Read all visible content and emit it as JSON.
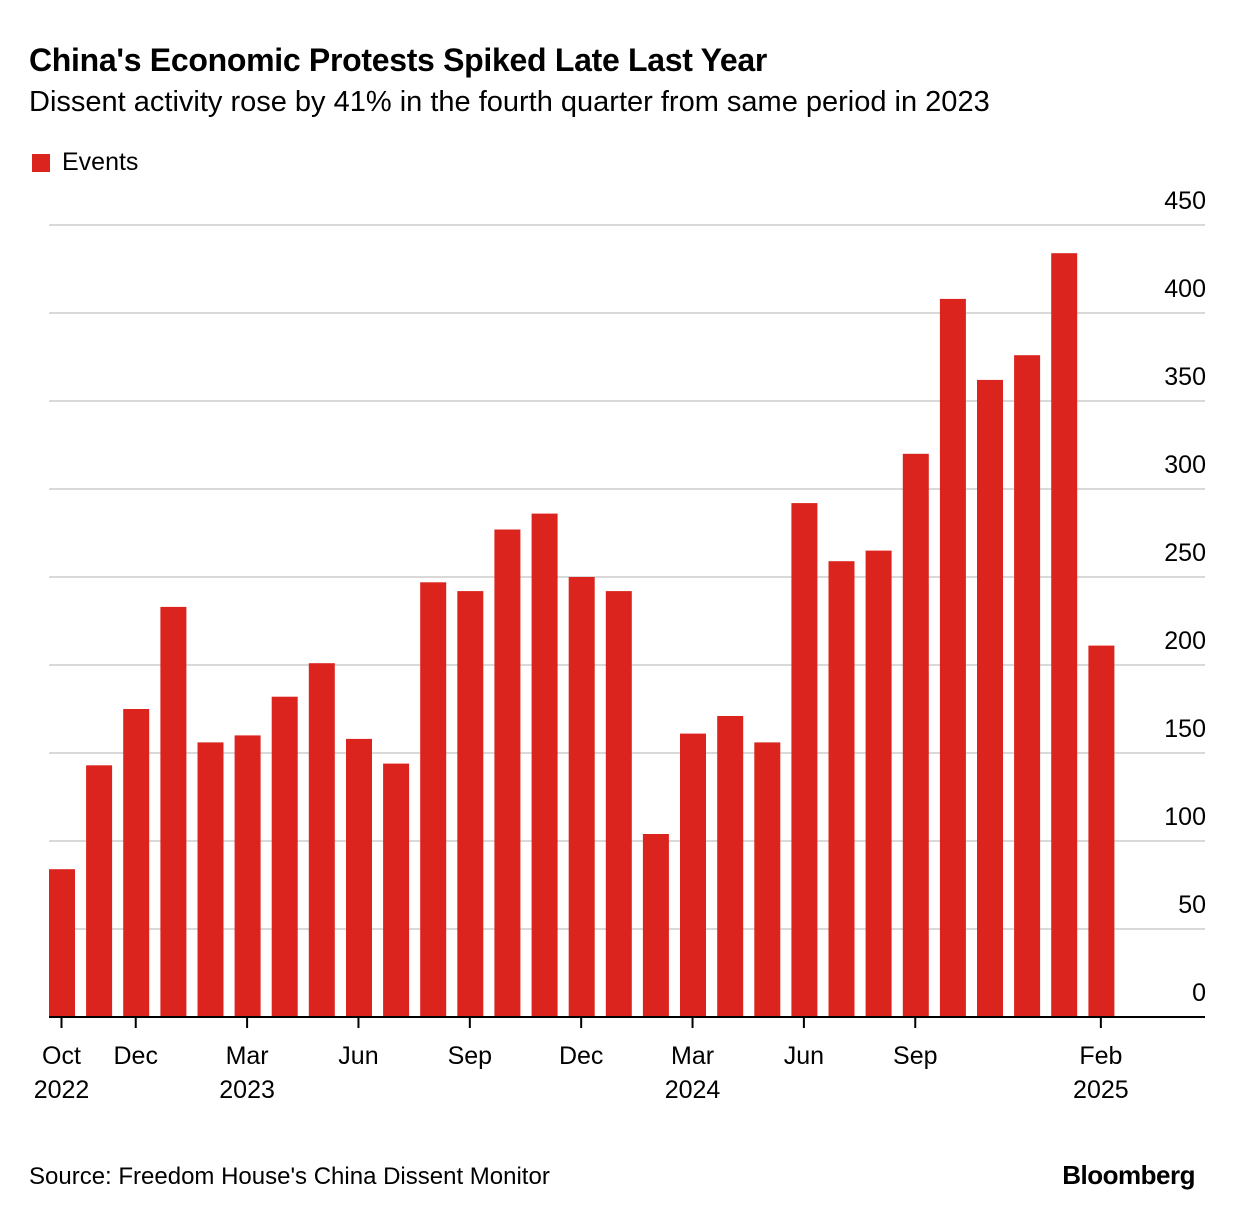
{
  "header": {
    "title": "China's Economic Protests Spiked Late Last Year",
    "subtitle": "Dissent activity rose by 41% in the fourth quarter from same period in 2023"
  },
  "legend": {
    "items": [
      {
        "label": "Events",
        "color": "#dc241f"
      }
    ]
  },
  "footer": {
    "source": "Source: Freedom House's China Dissent Monitor",
    "brand": "Bloomberg"
  },
  "colors": {
    "bar": "#dc241f",
    "grid": "#d9d9d9",
    "axis": "#000000"
  },
  "chart_data": {
    "type": "bar",
    "title": "China's Economic Protests Spiked Late Last Year",
    "subtitle": "Dissent activity rose by 41% in the fourth quarter from same period in 2023",
    "xlabel": "",
    "ylabel": "",
    "ylim": [
      0,
      450
    ],
    "yticks": [
      0,
      50,
      100,
      150,
      200,
      250,
      300,
      350,
      400,
      450
    ],
    "y_axis_side": "right",
    "grid": true,
    "legend_position": "top-left",
    "series": [
      {
        "name": "Events",
        "color": "#dc241f",
        "categories": [
          "2022-10",
          "2022-11",
          "2022-12",
          "2023-01",
          "2023-02",
          "2023-03",
          "2023-04",
          "2023-05",
          "2023-06",
          "2023-07",
          "2023-08",
          "2023-09",
          "2023-10",
          "2023-11",
          "2023-12",
          "2024-01",
          "2024-02",
          "2024-03",
          "2024-04",
          "2024-05",
          "2024-06",
          "2024-07",
          "2024-08",
          "2024-09",
          "2024-10",
          "2024-11",
          "2024-12",
          "2025-01",
          "2025-02"
        ],
        "values": [
          84,
          143,
          175,
          233,
          156,
          160,
          182,
          201,
          158,
          144,
          247,
          242,
          277,
          286,
          250,
          242,
          104,
          161,
          171,
          156,
          292,
          259,
          265,
          320,
          408,
          362,
          376,
          434,
          211
        ]
      }
    ],
    "xticks": [
      {
        "index": 0,
        "line1": "Oct",
        "line2": "2022"
      },
      {
        "index": 2,
        "line1": "Dec",
        "line2": ""
      },
      {
        "index": 5,
        "line1": "Mar",
        "line2": "2023"
      },
      {
        "index": 8,
        "line1": "Jun",
        "line2": ""
      },
      {
        "index": 11,
        "line1": "Sep",
        "line2": ""
      },
      {
        "index": 14,
        "line1": "Dec",
        "line2": ""
      },
      {
        "index": 17,
        "line1": "Mar",
        "line2": "2024"
      },
      {
        "index": 20,
        "line1": "Jun",
        "line2": ""
      },
      {
        "index": 23,
        "line1": "Sep",
        "line2": ""
      },
      {
        "index": 28,
        "line1": "Feb",
        "line2": "2025"
      }
    ]
  }
}
